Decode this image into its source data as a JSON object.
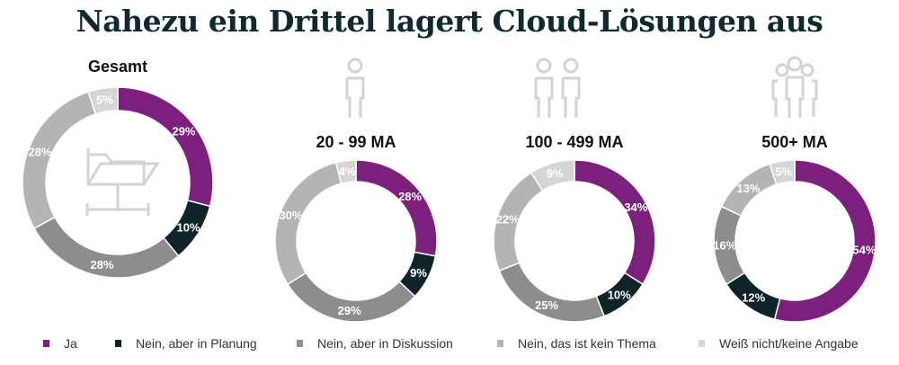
{
  "chart_data": [
    {
      "type": "pie",
      "title": "Gesamt",
      "values": [
        29,
        10,
        28,
        28,
        5
      ]
    },
    {
      "type": "pie",
      "title": "20 - 99 MA",
      "values": [
        28,
        9,
        29,
        30,
        4
      ]
    },
    {
      "type": "pie",
      "title": "100 - 499 MA",
      "values": [
        34,
        10,
        25,
        22,
        9
      ]
    },
    {
      "type": "pie",
      "title": "500+ MA",
      "values": [
        54,
        12,
        16,
        13,
        5
      ]
    }
  ],
  "title": "Nahezu ein Drittel lagert Cloud-Lösungen aus",
  "legend": [
    {
      "label": "Ja",
      "color": "#7d1f7c"
    },
    {
      "label": "Nein, aber in Planung",
      "color": "#0f2429"
    },
    {
      "label": "Nein, aber in Diskussion",
      "color": "#8d8d8d"
    },
    {
      "label": "Nein, das ist kein Thema",
      "color": "#b4b4b4"
    },
    {
      "label": "Weiß nicht/keine Angabe",
      "color": "#d5d5d5"
    }
  ],
  "legend_placement": "bottom",
  "icons": [
    "folder-network-icon",
    "person-icon",
    "two-persons-icon",
    "group-icon"
  ]
}
